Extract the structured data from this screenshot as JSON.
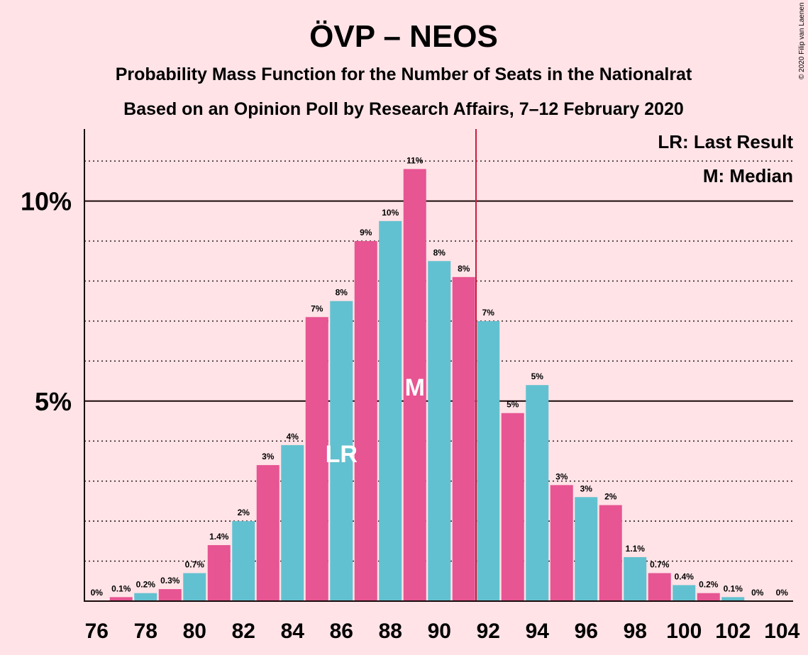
{
  "chart_data": {
    "type": "bar",
    "title": "ÖVP – NEOS",
    "subtitle": "Probability Mass Function for the Number of Seats in the Nationalrat",
    "subtitle2": "Based on an Opinion Poll by Research Affairs, 7–12 February 2020",
    "copyright": "© 2020 Filip van Laenen",
    "legend": [
      "LR: Last Result",
      "M: Median"
    ],
    "x": [
      76,
      77,
      78,
      79,
      80,
      81,
      82,
      83,
      84,
      85,
      86,
      87,
      88,
      89,
      90,
      91,
      92,
      93,
      94,
      95,
      96,
      97,
      98,
      99,
      100,
      101,
      102,
      103,
      104
    ],
    "values": [
      0,
      0.1,
      0.2,
      0.3,
      0.7,
      1.4,
      2.0,
      3.4,
      3.9,
      7.1,
      7.5,
      9.0,
      9.5,
      10.8,
      8.5,
      8.1,
      7.0,
      4.7,
      5.4,
      2.9,
      2.6,
      2.4,
      1.1,
      0.7,
      0.4,
      0.2,
      0.1,
      0,
      0
    ],
    "value_labels": [
      "0%",
      "0.1%",
      "0.2%",
      "0.3%",
      "0.7%",
      "1.4%",
      "2%",
      "3%",
      "4%",
      "7%",
      "8%",
      "9%",
      "10%",
      "11%",
      "8%",
      "8%",
      "7%",
      "5%",
      "5%",
      "3%",
      "3%",
      "2%",
      "1.1%",
      "0.7%",
      "0.4%",
      "0.2%",
      "0.1%",
      "0%",
      "0%"
    ],
    "x_tick_labels": [
      "76",
      "78",
      "80",
      "82",
      "84",
      "86",
      "88",
      "90",
      "92",
      "94",
      "96",
      "98",
      "100",
      "102",
      "104"
    ],
    "y_ticks": [
      {
        "value": 5,
        "label": "5%"
      },
      {
        "value": 10,
        "label": "10%"
      }
    ],
    "ylim": [
      0,
      11.8
    ],
    "majority_line_after_x": 91,
    "last_result_x": 86,
    "last_result_label": "LR",
    "median_x": 89,
    "median_label": "M",
    "colors": {
      "background": "#ffe3e7",
      "odd_bar": "#e75593",
      "even_bar": "#62c1d0",
      "majority_line": "#cc1b3d",
      "text": "#1a0a0a"
    }
  }
}
